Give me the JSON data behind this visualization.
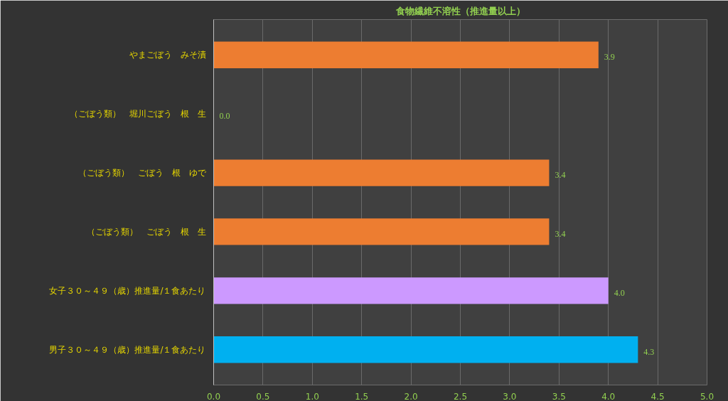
{
  "chart_data": {
    "type": "bar",
    "orientation": "horizontal",
    "title": "食物繊維不溶性（推進量以上）",
    "categories": [
      "やまごぼう　みそ漬",
      "（ごぼう類）　堀川ごぼう　根　生",
      "（ごぼう類）　ごぼう　根　ゆで",
      "（ごぼう類）　ごぼう　根　生",
      "女子３０～４９（歳）推進量/１食あたり",
      "男子３０～４９（歳）推進量/１食あたり"
    ],
    "values": [
      3.9,
      0.0,
      3.4,
      3.4,
      4.0,
      4.3
    ],
    "colors": [
      "#ed7d31",
      "#ed7d31",
      "#ed7d31",
      "#ed7d31",
      "#cc99ff",
      "#00b0f0"
    ],
    "value_labels": [
      "3.9",
      "0.0",
      "3.4",
      "3.4",
      "4.0",
      "4.3"
    ],
    "xlim": [
      0,
      5
    ],
    "xticks": [
      {
        "value": 0,
        "label": "0.0"
      },
      0.5,
      {
        "value": 1,
        "label": "1.0"
      },
      1.5,
      {
        "value": 2,
        "label": "2.0"
      },
      2.5,
      {
        "value": 3,
        "label": "3.0"
      },
      3.5,
      {
        "value": 4,
        "label": "4.0"
      },
      4.5,
      {
        "value": 5,
        "label": "5.0"
      }
    ],
    "grid": "x"
  }
}
